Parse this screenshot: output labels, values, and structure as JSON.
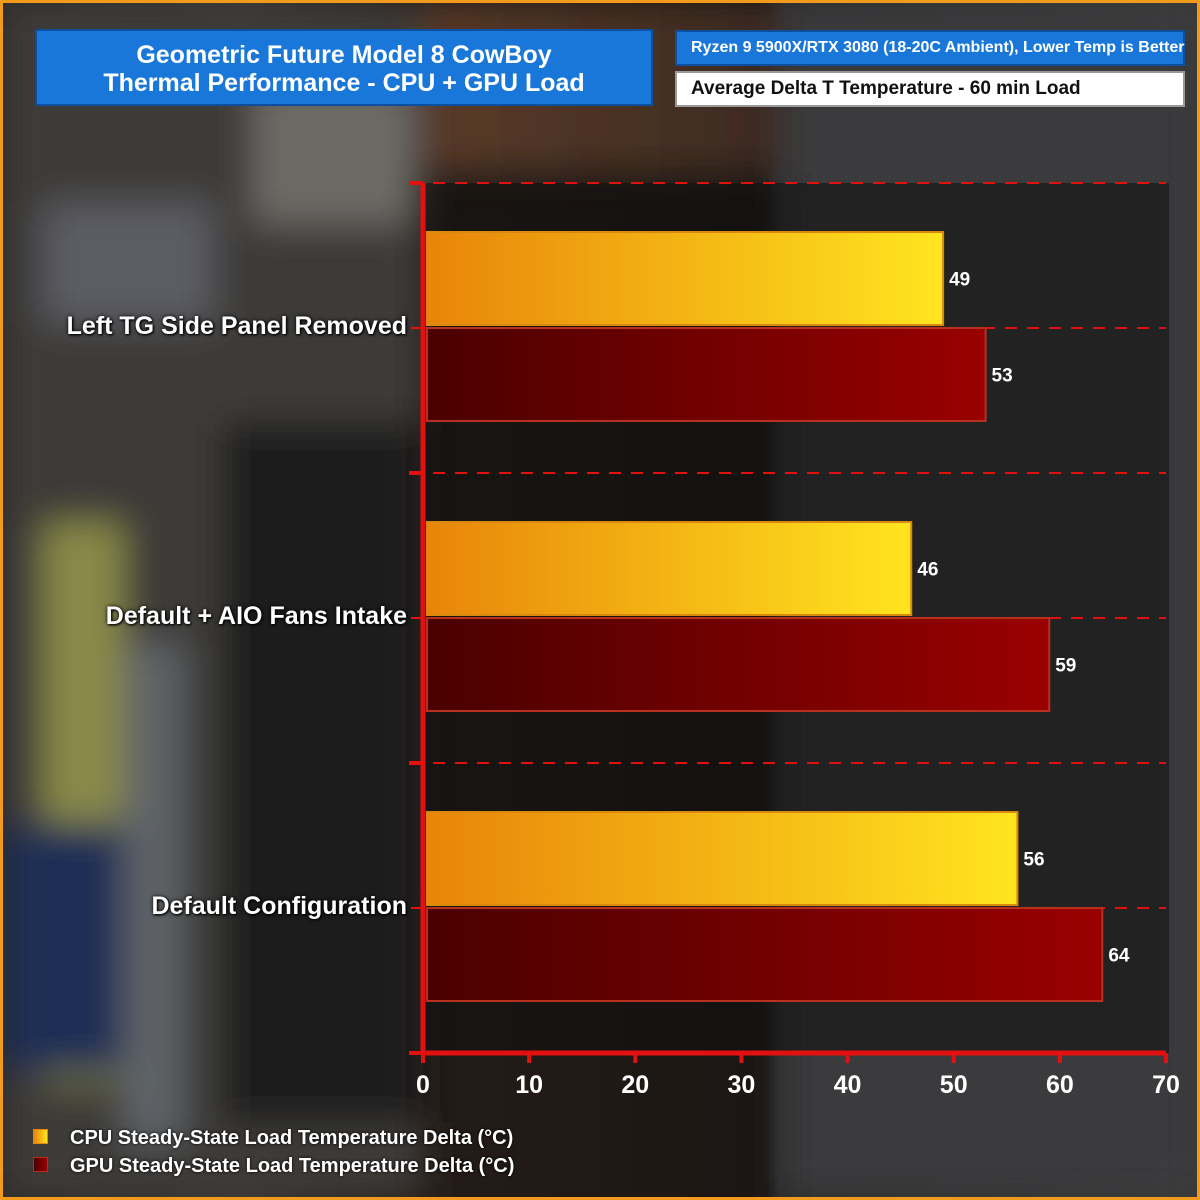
{
  "title": {
    "line1": "Geometric Future Model 8 CowBoy",
    "line2": "Thermal Performance - CPU + GPU Load"
  },
  "subtitle": "Ryzen 9 5900X/RTX 3080 (18-20C Ambient), Lower Temp is Better",
  "metric": "Average Delta T Temperature - 60 min Load",
  "colors": {
    "accent": "#f29a1c",
    "header": "#1877d9",
    "axis": "#e31010",
    "cpu": "#f5b91c",
    "gpu": "#8b0000"
  },
  "chart_data": {
    "type": "bar",
    "orientation": "horizontal",
    "categories": [
      "Left TG Side Panel Removed",
      "Default + AIO Fans Intake",
      "Default Configuration"
    ],
    "series": [
      {
        "name": "CPU Steady-State Load Temperature Delta (°C)",
        "values": [
          49,
          46,
          56
        ]
      },
      {
        "name": "GPU Steady-State Load Temperature Delta (°C)",
        "values": [
          53,
          59,
          64
        ]
      }
    ],
    "xlim": [
      0,
      70
    ],
    "xticks": [
      "0",
      "10",
      "20",
      "30",
      "40",
      "50",
      "60",
      "70"
    ],
    "grid": "dashed horizontal",
    "legend": "bottom-left"
  },
  "legend": {
    "cpu": "CPU Steady-State Load Temperature Delta (°C)",
    "gpu": "GPU Steady-State Load Temperature Delta (°C)"
  }
}
